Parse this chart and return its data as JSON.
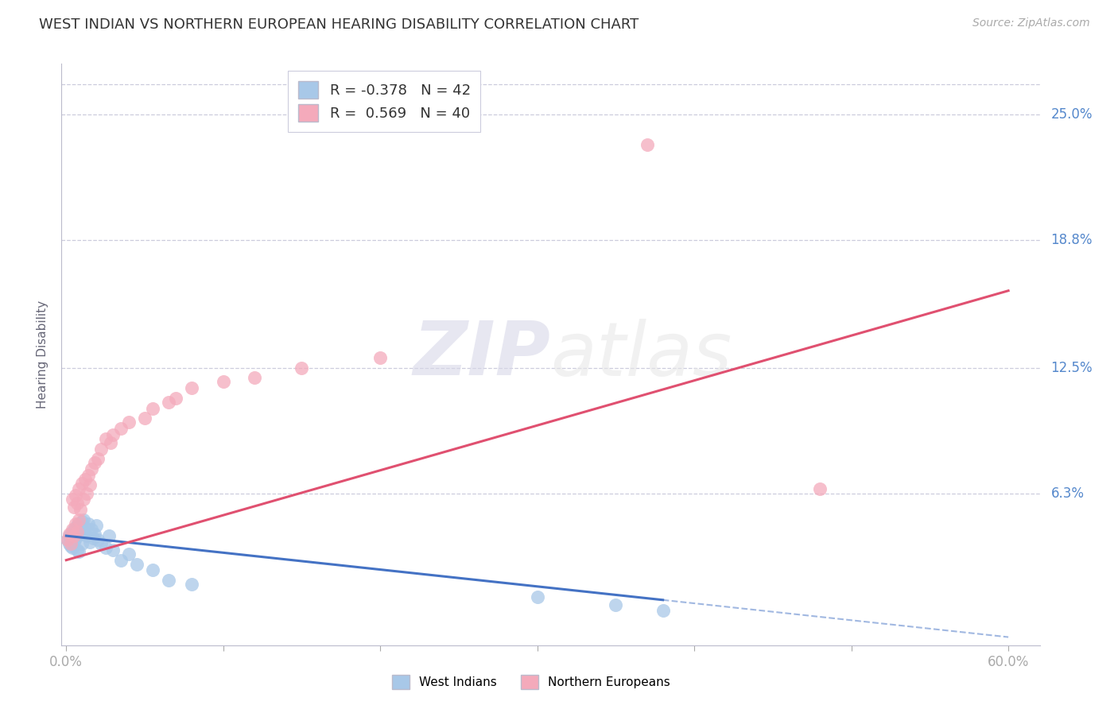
{
  "title": "WEST INDIAN VS NORTHERN EUROPEAN HEARING DISABILITY CORRELATION CHART",
  "source": "Source: ZipAtlas.com",
  "ylabel": "Hearing Disability",
  "ytick_labels": [
    "25.0%",
    "18.8%",
    "12.5%",
    "6.3%"
  ],
  "ytick_values": [
    0.25,
    0.188,
    0.125,
    0.063
  ],
  "xlim": [
    -0.003,
    0.62
  ],
  "ylim": [
    -0.012,
    0.275
  ],
  "legend_blue_r": "-0.378",
  "legend_blue_n": "42",
  "legend_pink_r": "0.569",
  "legend_pink_n": "40",
  "blue_scatter_color": "#A8C8E8",
  "pink_scatter_color": "#F4AABB",
  "blue_line_color": "#4472C4",
  "pink_line_color": "#E05070",
  "background_color": "#FFFFFF",
  "grid_color": "#CCCCDD",
  "axis_label_color": "#5588CC",
  "title_color": "#333333",
  "west_indian_x": [
    0.001,
    0.002,
    0.002,
    0.003,
    0.003,
    0.004,
    0.004,
    0.005,
    0.005,
    0.006,
    0.006,
    0.007,
    0.007,
    0.008,
    0.008,
    0.009,
    0.01,
    0.01,
    0.011,
    0.011,
    0.012,
    0.013,
    0.014,
    0.015,
    0.016,
    0.017,
    0.018,
    0.019,
    0.02,
    0.022,
    0.025,
    0.027,
    0.03,
    0.035,
    0.04,
    0.045,
    0.055,
    0.065,
    0.08,
    0.3,
    0.35,
    0.38
  ],
  "west_indian_y": [
    0.04,
    0.042,
    0.038,
    0.043,
    0.037,
    0.044,
    0.036,
    0.045,
    0.039,
    0.046,
    0.041,
    0.047,
    0.035,
    0.048,
    0.034,
    0.043,
    0.049,
    0.038,
    0.05,
    0.044,
    0.046,
    0.042,
    0.048,
    0.039,
    0.045,
    0.041,
    0.043,
    0.047,
    0.04,
    0.038,
    0.036,
    0.042,
    0.035,
    0.03,
    0.033,
    0.028,
    0.025,
    0.02,
    0.018,
    0.012,
    0.008,
    0.005
  ],
  "northern_european_x": [
    0.001,
    0.002,
    0.003,
    0.004,
    0.004,
    0.005,
    0.005,
    0.006,
    0.006,
    0.007,
    0.007,
    0.008,
    0.008,
    0.009,
    0.01,
    0.011,
    0.012,
    0.013,
    0.014,
    0.015,
    0.016,
    0.018,
    0.02,
    0.022,
    0.025,
    0.028,
    0.03,
    0.035,
    0.04,
    0.05,
    0.055,
    0.065,
    0.07,
    0.08,
    0.1,
    0.12,
    0.15,
    0.2,
    0.48,
    0.37
  ],
  "northern_european_y": [
    0.04,
    0.043,
    0.038,
    0.06,
    0.045,
    0.056,
    0.042,
    0.062,
    0.048,
    0.058,
    0.044,
    0.065,
    0.05,
    0.055,
    0.068,
    0.06,
    0.07,
    0.063,
    0.072,
    0.067,
    0.075,
    0.078,
    0.08,
    0.085,
    0.09,
    0.088,
    0.092,
    0.095,
    0.098,
    0.1,
    0.105,
    0.108,
    0.11,
    0.115,
    0.118,
    0.12,
    0.125,
    0.13,
    0.065,
    0.235
  ],
  "blue_line_x0": 0.0,
  "blue_line_y0": 0.042,
  "blue_line_x1": 0.6,
  "blue_line_y1": -0.008,
  "pink_line_x0": 0.0,
  "pink_line_y0": 0.03,
  "pink_line_x1": 0.6,
  "pink_line_y1": 0.163
}
